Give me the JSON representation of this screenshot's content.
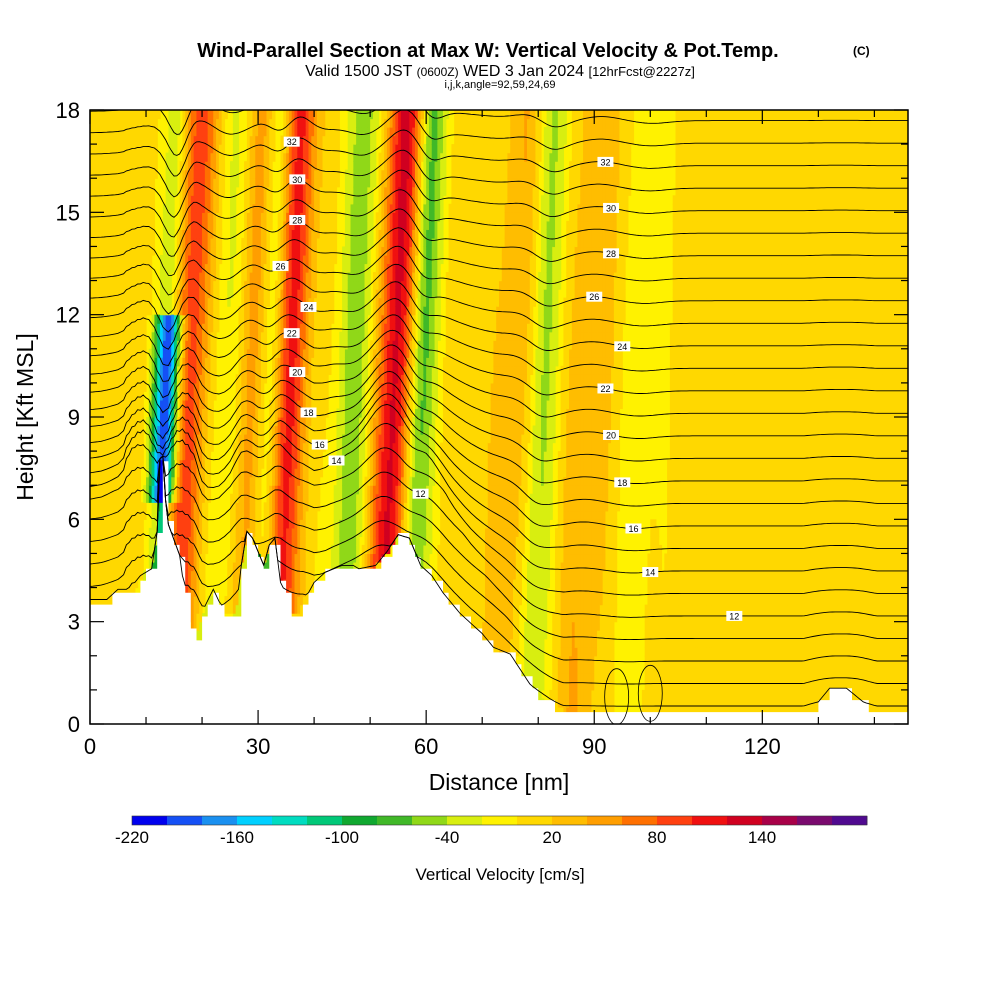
{
  "chart_data": {
    "type": "heatmap",
    "title": "Wind-Parallel Section at Max W: Vertical Velocity & Pot.Temp.",
    "copyright_mark": "(C)",
    "subtitle": {
      "valid": "Valid 1500 JST",
      "utc": "(0600Z)",
      "date": "WED 3 Jan 2024",
      "forecast": "[12hrFcst@2227z]"
    },
    "indices_line": "i,j,k,angle=92,59,24,69",
    "xlabel": "Distance [nm]",
    "ylabel": "Height [Kft MSL]",
    "xlim": [
      0,
      146
    ],
    "ylim": [
      0,
      18
    ],
    "xticks": [
      0,
      30,
      60,
      90,
      120
    ],
    "yticks": [
      0,
      3,
      6,
      9,
      12,
      15,
      18
    ],
    "grid": false,
    "colorbar": {
      "label": "Vertical Velocity [cm/s]",
      "tick_labels": [
        "-220",
        "-160",
        "-100",
        "-40",
        "20",
        "80",
        "140"
      ],
      "bin_width": 20,
      "min": -220,
      "colors": [
        "#0000ee",
        "#1550f5",
        "#1a90f0",
        "#00d0ff",
        "#00dcc0",
        "#00c878",
        "#10a830",
        "#40b828",
        "#90d818",
        "#d8ee10",
        "#fff200",
        "#ffd800",
        "#ffbd00",
        "#ff9e00",
        "#ff7000",
        "#ff4010",
        "#f01010",
        "#d00020",
        "#a80048",
        "#7a0a6e",
        "#500a90"
      ]
    },
    "updraft_bands": [
      {
        "x": 16.5,
        "w": 3.2,
        "strength": 120
      },
      {
        "x": 29.5,
        "w": 2.2,
        "strength": 80
      },
      {
        "x": 35,
        "w": 2.2,
        "strength": 110
      },
      {
        "x": 54.5,
        "w": 2.6,
        "strength": 130
      },
      {
        "x": 76,
        "w": 2.6,
        "strength": 35
      },
      {
        "x": 89,
        "w": 3,
        "strength": 30
      }
    ],
    "downdraft_bands": [
      {
        "x": 13.5,
        "w": 1.6,
        "strength": -200,
        "ztop": 12
      },
      {
        "x": 13.8,
        "w": 2.2,
        "strength": -80
      },
      {
        "x": 31.5,
        "w": 2,
        "strength": -95
      },
      {
        "x": 23,
        "w": 3,
        "strength": -40
      },
      {
        "x": 47,
        "w": 2.5,
        "strength": -60
      },
      {
        "x": 58.5,
        "w": 2,
        "strength": -100
      },
      {
        "x": 80.5,
        "w": 2.2,
        "strength": -55
      },
      {
        "x": 98,
        "w": 3,
        "strength": -20
      }
    ],
    "terrain_kft": [
      [
        0,
        3.6
      ],
      [
        3,
        3.6
      ],
      [
        5,
        3.9
      ],
      [
        8,
        3.9
      ],
      [
        9,
        4.3
      ],
      [
        11,
        4.5
      ],
      [
        12,
        5.6
      ],
      [
        12.3,
        7.7
      ],
      [
        13,
        7.8
      ],
      [
        13.5,
        6.5
      ],
      [
        14,
        5.8
      ],
      [
        16,
        4.9
      ],
      [
        17,
        3.7
      ],
      [
        18,
        2.9
      ],
      [
        19,
        2.6
      ],
      [
        20.5,
        3.4
      ],
      [
        22,
        3.9
      ],
      [
        24,
        3.2
      ],
      [
        26,
        3.2
      ],
      [
        27,
        4.6
      ],
      [
        28,
        5.6
      ],
      [
        29,
        5.4
      ],
      [
        30,
        5.0
      ],
      [
        31,
        4.6
      ],
      [
        32,
        5.2
      ],
      [
        33,
        5.4
      ],
      [
        34,
        4.1
      ],
      [
        35,
        3.7
      ],
      [
        36,
        3.1
      ],
      [
        38,
        3.5
      ],
      [
        40,
        4.1
      ],
      [
        42,
        4.4
      ],
      [
        45,
        4.6
      ],
      [
        47,
        4.6
      ],
      [
        48,
        4.5
      ],
      [
        51,
        4.6
      ],
      [
        53,
        5.0
      ],
      [
        55,
        5.5
      ],
      [
        57,
        5.4
      ],
      [
        59,
        4.6
      ],
      [
        61,
        4.3
      ],
      [
        63,
        3.8
      ],
      [
        66,
        3.2
      ],
      [
        68,
        2.9
      ],
      [
        70,
        2.6
      ],
      [
        72,
        2.2
      ],
      [
        75,
        2.0
      ],
      [
        77,
        1.5
      ],
      [
        79,
        1.0
      ],
      [
        81,
        0.7
      ],
      [
        83,
        0.5
      ],
      [
        85,
        0.3
      ],
      [
        106,
        0.3
      ],
      [
        128,
        0.3
      ],
      [
        130,
        0.6
      ],
      [
        132,
        1.0
      ],
      [
        135,
        1.0
      ],
      [
        138,
        0.6
      ],
      [
        140,
        0.3
      ],
      [
        146,
        0.3
      ]
    ],
    "theta_labels": [
      "12",
      "14",
      "16",
      "18",
      "20",
      "22",
      "24",
      "26",
      "28",
      "30",
      "32"
    ],
    "theta_levels_C": [
      8,
      9,
      10,
      11,
      12,
      13,
      14,
      15,
      16,
      17,
      18,
      19,
      20,
      21,
      22,
      23,
      24,
      25,
      26,
      27,
      28,
      29,
      30,
      31,
      32,
      33,
      34
    ]
  }
}
